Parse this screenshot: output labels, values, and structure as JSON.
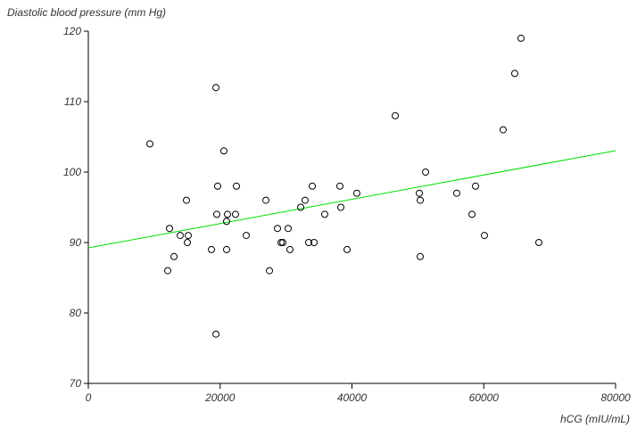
{
  "chart_data": {
    "type": "scatter",
    "y_label": "Diastolic blood pressure (mm Hg)",
    "x_label": "hCG (mIU/mL)",
    "xlim": [
      0,
      80000
    ],
    "xticks": [
      0,
      20000,
      40000,
      60000,
      80000
    ],
    "ylim": [
      70,
      120
    ],
    "yticks": [
      70,
      80,
      90,
      100,
      110,
      120
    ],
    "marker_color": "#000000",
    "x": [
      9340,
      12050,
      12320,
      13000,
      13940,
      14890,
      15160,
      15030,
      18680,
      19360,
      19490,
      19620,
      19360,
      20570,
      20980,
      21120,
      20980,
      22330,
      22470,
      23960,
      26940,
      27480,
      28700,
      29240,
      29510,
      30320,
      30590,
      32220,
      32890,
      33430,
      33980,
      34250,
      35870,
      38170,
      38310,
      39260,
      40740,
      46570,
      50220,
      50360,
      50360,
      51170,
      55900,
      58210,
      58750,
      60100,
      62940,
      64700,
      65650,
      68360
    ],
    "values": [
      104,
      86,
      92,
      88,
      91,
      96,
      91,
      90,
      89,
      112,
      94,
      98,
      77,
      103,
      93,
      94,
      89,
      94,
      98,
      91,
      96,
      86,
      92,
      90,
      90,
      92,
      89,
      95,
      96,
      90,
      98,
      90,
      94,
      98,
      95,
      89,
      97,
      108,
      97,
      96,
      88,
      100,
      97,
      94,
      98,
      91,
      106,
      114,
      119,
      90
    ],
    "regression": {
      "color": "#00dd00",
      "x": [
        0,
        80000
      ],
      "values": [
        89.24,
        103.04
      ]
    }
  }
}
